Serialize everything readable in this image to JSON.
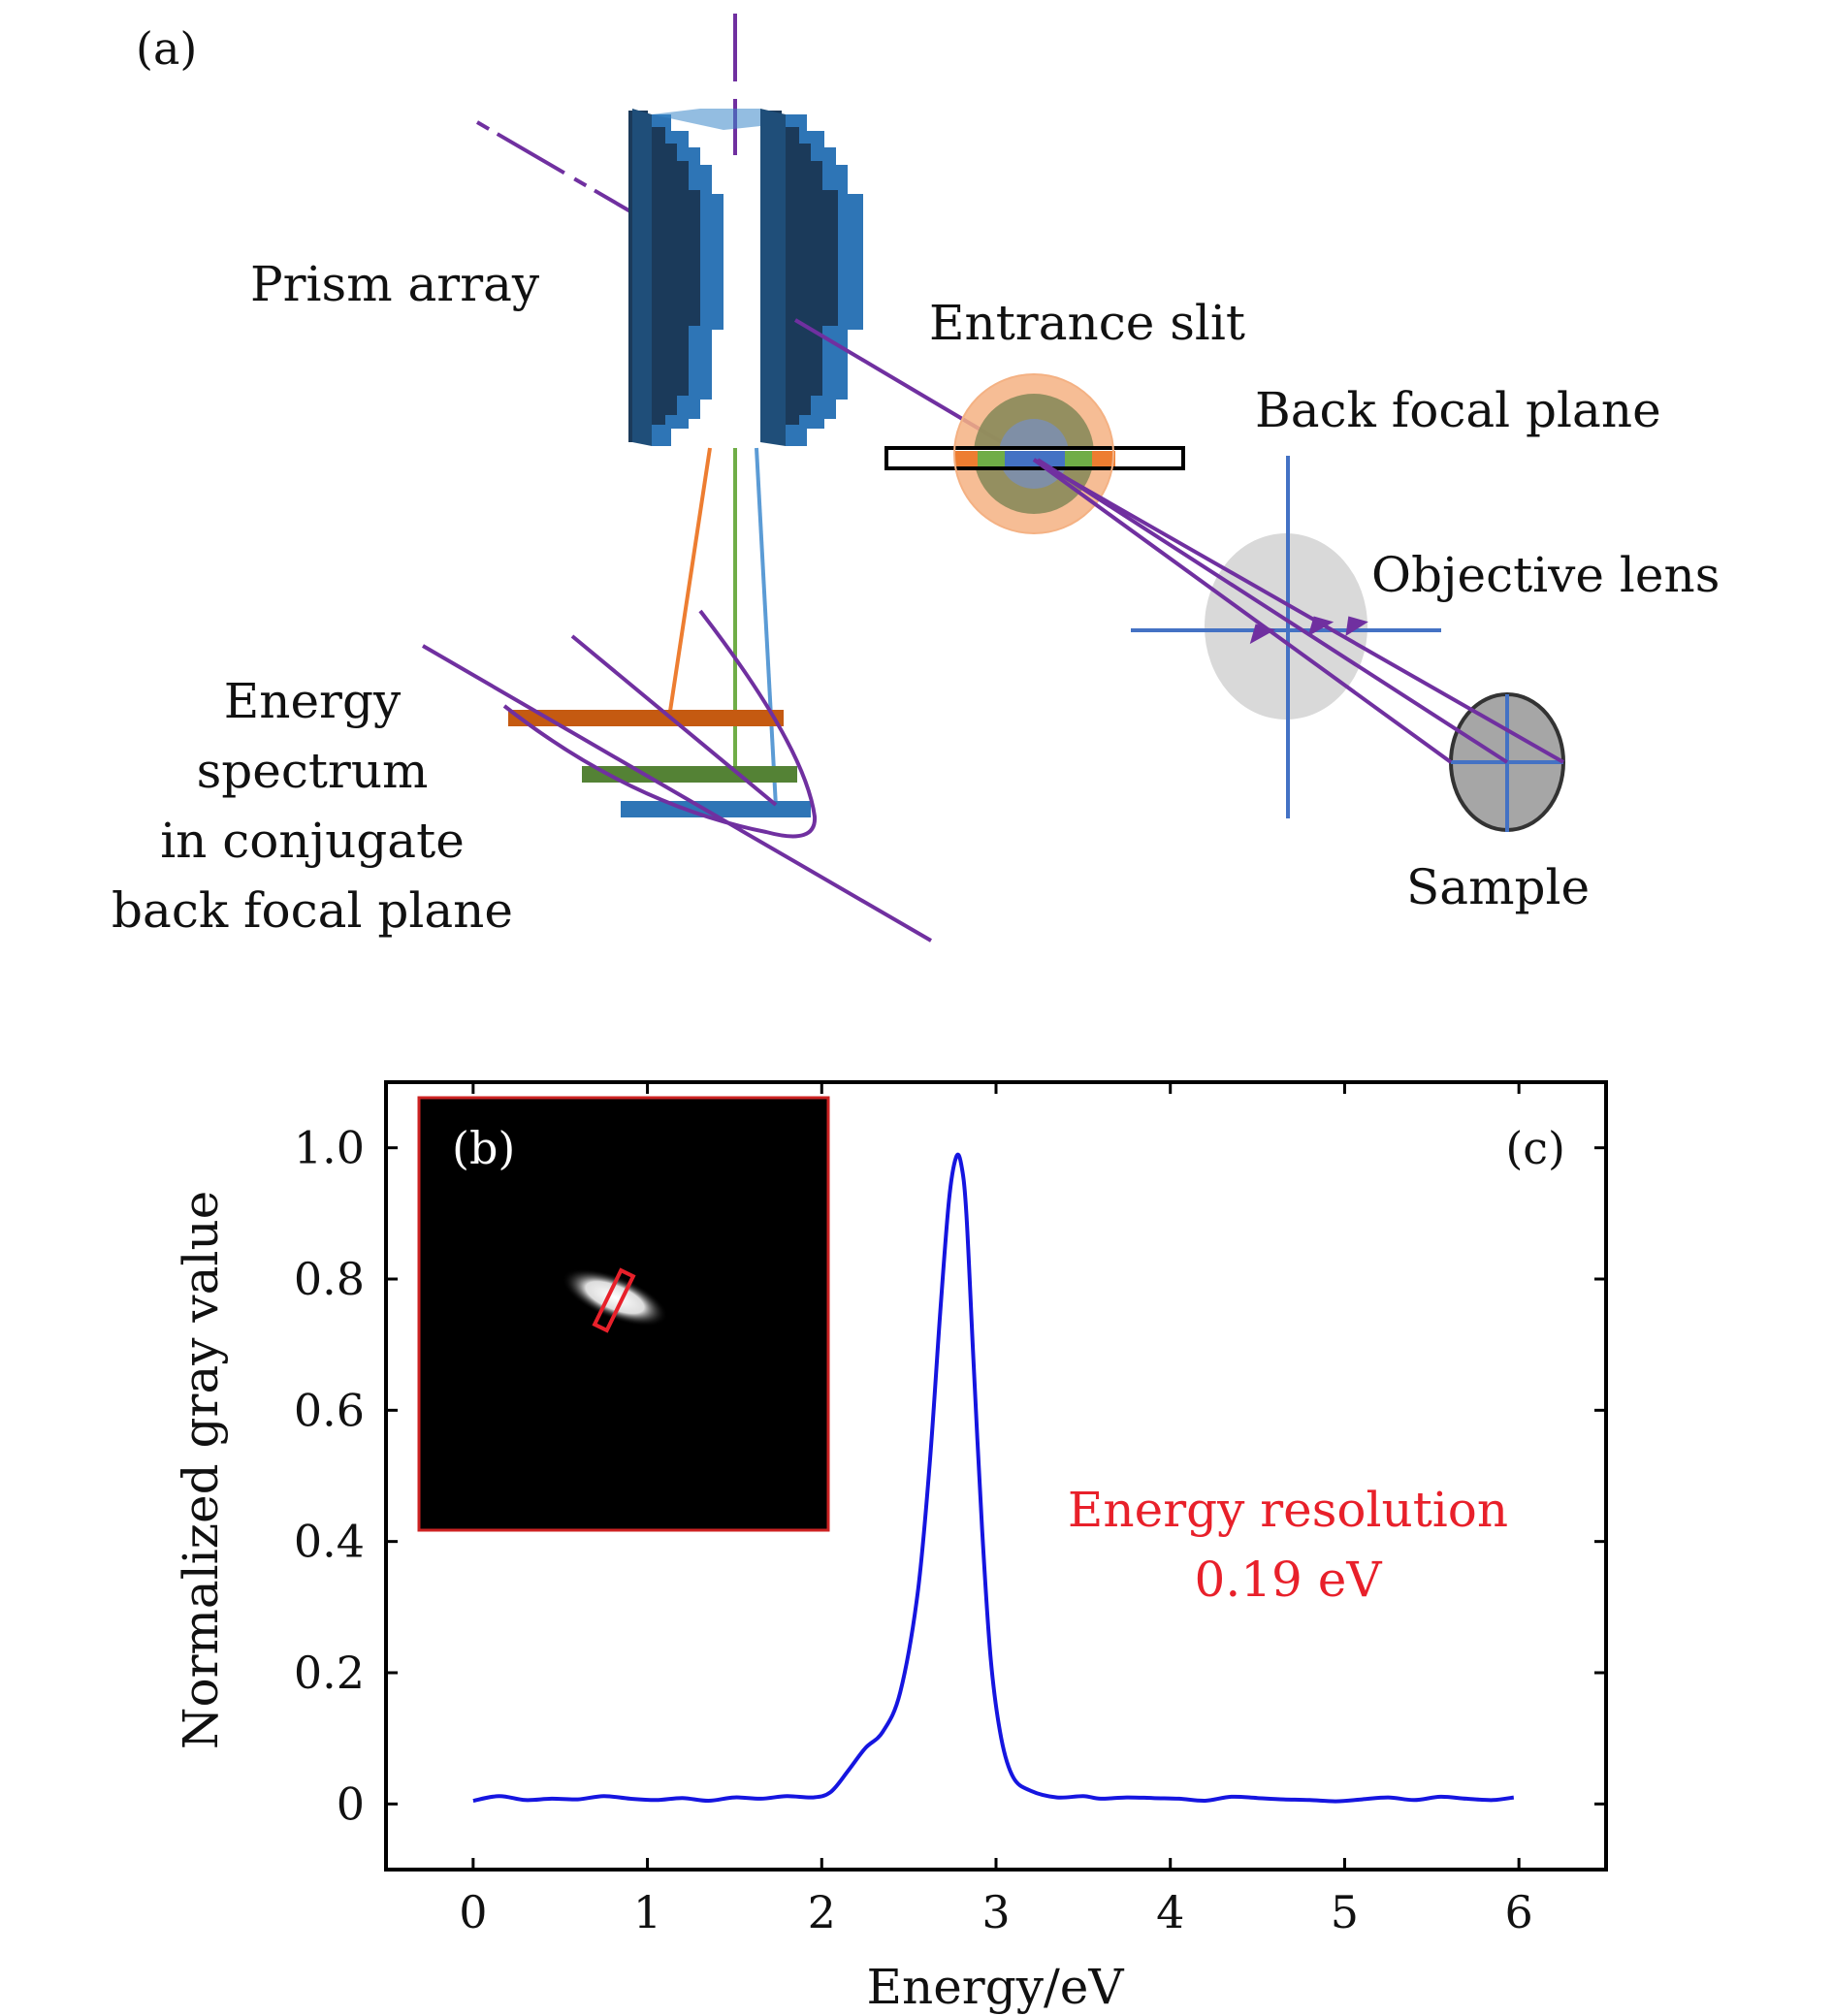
{
  "panel_a": {
    "label": "(a)",
    "labels": {
      "prism_array": "Prism array",
      "entrance_slit": "Entrance slit",
      "back_focal_plane": "Back focal plane",
      "objective_lens": "Objective lens",
      "sample": "Sample",
      "spectrum_line1": "Energy",
      "spectrum_line2": "spectrum",
      "spectrum_line3": "in conjugate",
      "spectrum_line4": "back focal plane"
    },
    "colors": {
      "prism_dark": "#1b3a5a",
      "prism_light": "#2e75b6",
      "beam": "#7030a0",
      "lens": "#d9d9d9",
      "sample": "#a6a6a6",
      "axis": "#4472c4",
      "orange": "#c55a11",
      "green": "#70ad47",
      "blue": "#5b9bd5"
    }
  },
  "panel_b": {
    "label": "(b)"
  },
  "chart_data": {
    "type": "line",
    "panel_label": "(c)",
    "xlabel": "Energy/eV",
    "ylabel": "Normalized gray value",
    "xlim": [
      -0.5,
      6.5
    ],
    "ylim": [
      -0.1,
      1.1
    ],
    "xticks": [
      0,
      1,
      2,
      3,
      4,
      5,
      6
    ],
    "xtick_labels": [
      "0",
      "1",
      "2",
      "3",
      "4",
      "5",
      "6"
    ],
    "yticks": [
      0,
      0.2,
      0.4,
      0.6,
      0.8,
      1.0
    ],
    "ytick_labels": [
      "0",
      "0.2",
      "0.4",
      "0.6",
      "0.8",
      "1.0"
    ],
    "annotation": {
      "line1": "Energy resolution",
      "line2": "0.19 eV",
      "color": "#e8202a"
    },
    "series": [
      {
        "color": "#1515e0",
        "x": [
          0.0,
          0.15,
          0.3,
          0.45,
          0.6,
          0.75,
          0.9,
          1.05,
          1.2,
          1.35,
          1.5,
          1.65,
          1.8,
          1.95,
          2.05,
          2.15,
          2.25,
          2.35,
          2.45,
          2.55,
          2.62,
          2.68,
          2.73,
          2.77,
          2.8,
          2.83,
          2.87,
          2.92,
          2.97,
          3.03,
          3.1,
          3.2,
          3.35,
          3.5,
          3.6,
          3.75,
          3.9,
          4.05,
          4.2,
          4.35,
          4.5,
          4.65,
          4.8,
          4.95,
          5.1,
          5.25,
          5.4,
          5.55,
          5.7,
          5.85,
          5.97
        ],
        "y": [
          0.005,
          0.012,
          0.006,
          0.008,
          0.007,
          0.012,
          0.008,
          0.006,
          0.009,
          0.005,
          0.01,
          0.008,
          0.012,
          0.01,
          0.018,
          0.05,
          0.085,
          0.11,
          0.17,
          0.32,
          0.52,
          0.75,
          0.92,
          0.985,
          0.975,
          0.9,
          0.68,
          0.42,
          0.22,
          0.1,
          0.04,
          0.02,
          0.01,
          0.012,
          0.008,
          0.01,
          0.009,
          0.008,
          0.005,
          0.011,
          0.009,
          0.007,
          0.006,
          0.004,
          0.007,
          0.01,
          0.006,
          0.011,
          0.008,
          0.006,
          0.01
        ]
      }
    ]
  }
}
